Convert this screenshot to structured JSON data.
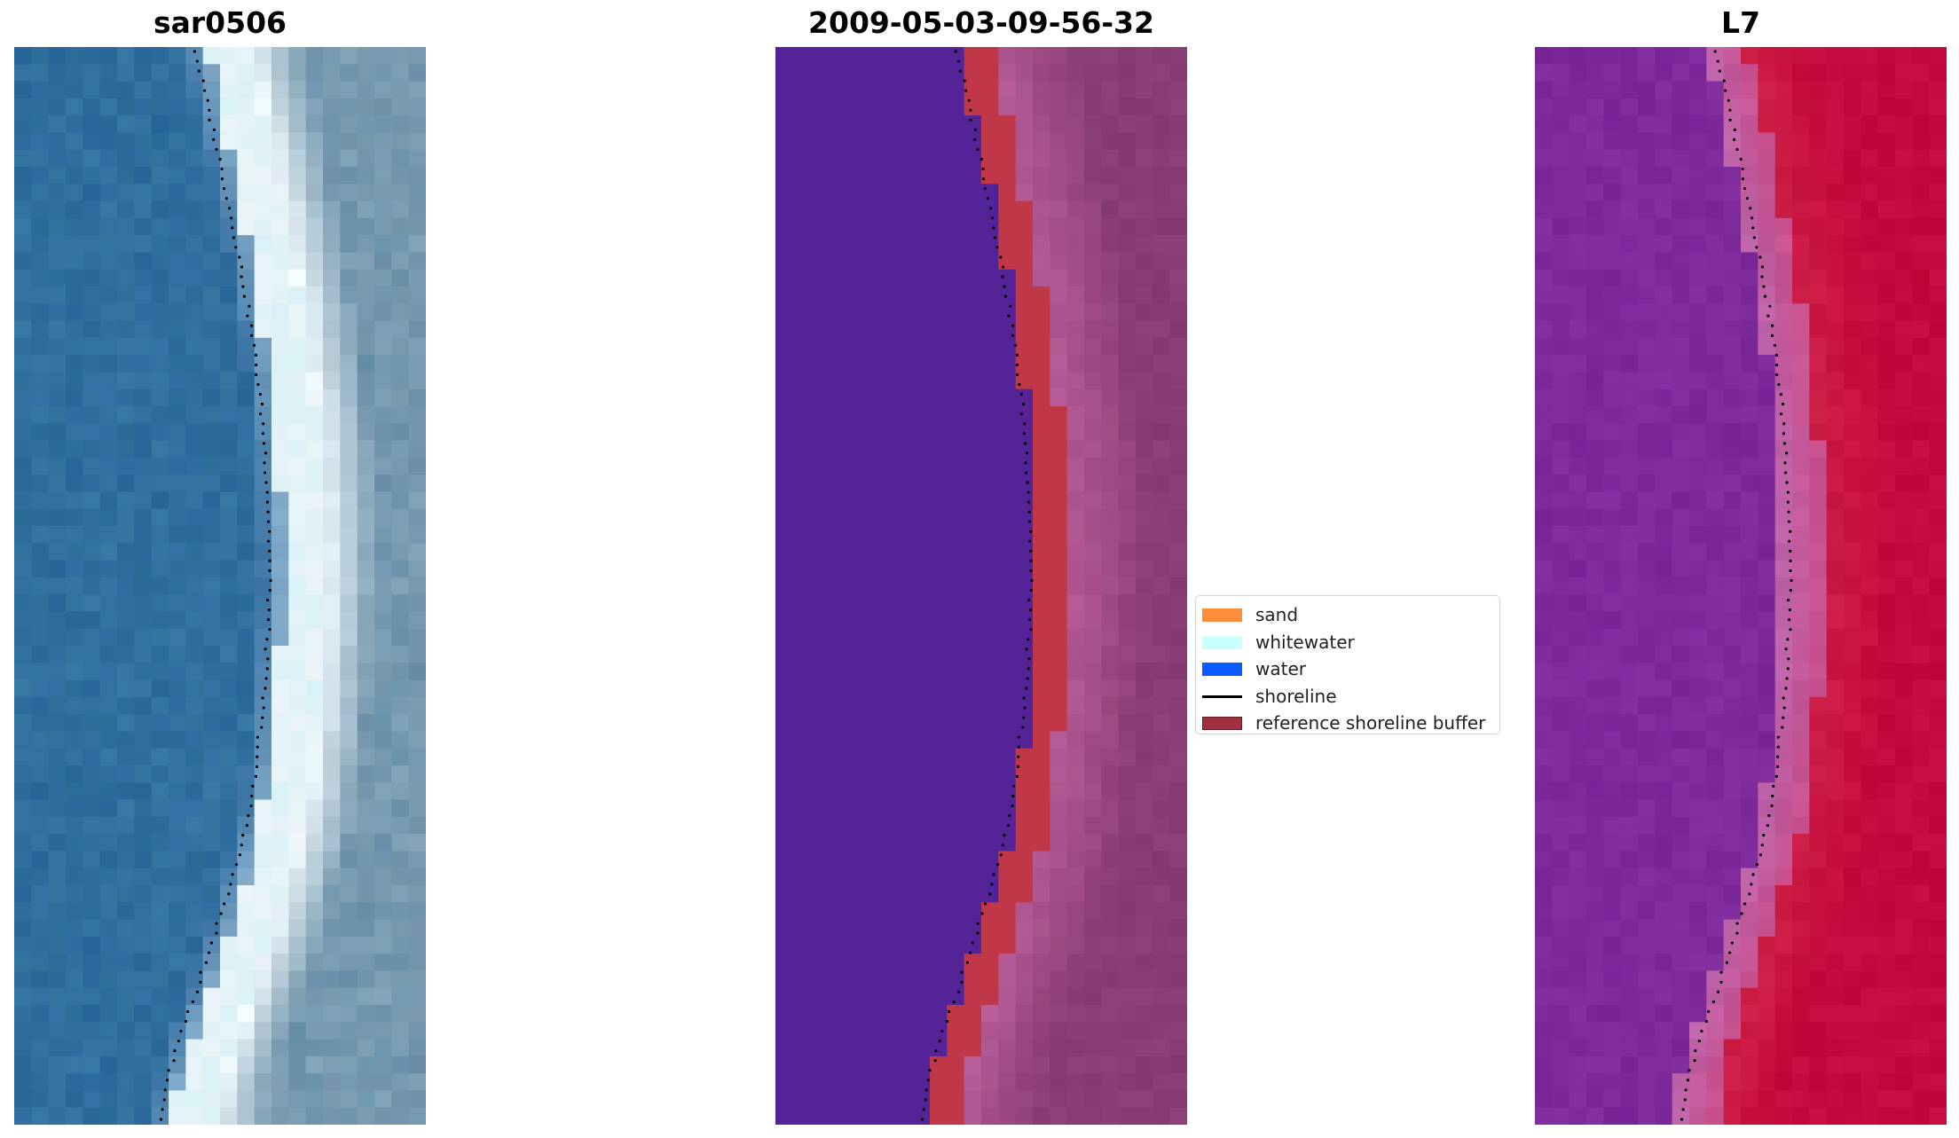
{
  "panels": {
    "rgb": {
      "title": "sar0506"
    },
    "classified": {
      "title": "2009-05-03-09-56-32"
    },
    "index": {
      "title": "L7"
    }
  },
  "legend": {
    "items": [
      {
        "label": "sand",
        "color": "#ff8c3a",
        "kind": "patch"
      },
      {
        "label": "whitewater",
        "color": "#c8ffff",
        "kind": "patch"
      },
      {
        "label": "water",
        "color": "#0a5aff",
        "kind": "patch"
      },
      {
        "label": "shoreline",
        "color": "#000000",
        "kind": "line"
      },
      {
        "label": "reference shoreline buffer",
        "color": "#a03040",
        "kind": "patch"
      }
    ]
  },
  "colors": {
    "water_deep": "#2d6a9e",
    "whitewater": "#f2fbff",
    "sand_rgb": "#7fa0b4",
    "classified_water": "#542398",
    "classified_buffer": "#c03848",
    "classified_land": "#8a3c74",
    "index_low": "#7c2a9c",
    "index_high": "#c40a3c"
  }
}
